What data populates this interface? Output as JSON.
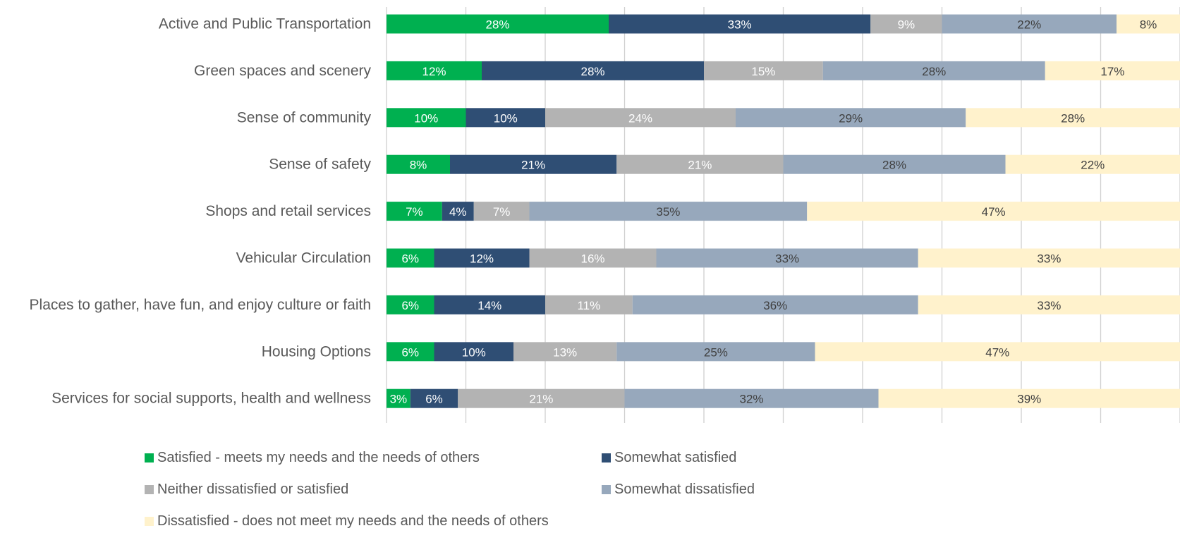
{
  "chart_data": {
    "type": "bar",
    "orientation": "horizontal",
    "stacked": true,
    "categories": [
      "Active and Public Transportation",
      "Green spaces and scenery",
      "Sense of community",
      "Sense of safety",
      "Shops and retail services",
      "Vehicular Circulation",
      "Places to gather, have fun, and enjoy culture or faith",
      "Housing Options",
      "Services for social supports, health and wellness"
    ],
    "series": [
      {
        "name": "Satisfied - meets my needs and the needs of others",
        "color": "#00b050",
        "label_color": "#ffffff",
        "values": [
          28,
          12,
          10,
          8,
          7,
          6,
          6,
          6,
          3
        ]
      },
      {
        "name": "Somewhat satisfied",
        "color": "#2f4e74",
        "label_color": "#ffffff",
        "values": [
          33,
          28,
          10,
          21,
          4,
          12,
          14,
          10,
          6
        ]
      },
      {
        "name": "Neither dissatisfied or satisfied",
        "color": "#b3b3b3",
        "label_color": "#ffffff",
        "values": [
          9,
          15,
          24,
          21,
          7,
          16,
          11,
          13,
          21
        ]
      },
      {
        "name": "Somewhat dissatisfied",
        "color": "#97a8bc",
        "label_color": "#404040",
        "values": [
          22,
          28,
          29,
          28,
          35,
          33,
          36,
          25,
          32
        ]
      },
      {
        "name": "Dissatisfied - does not meet my needs and the needs of others",
        "color": "#fff2cc",
        "label_color": "#404040",
        "values": [
          8,
          17,
          28,
          22,
          47,
          33,
          33,
          47,
          39
        ]
      }
    ],
    "value_suffix": "%",
    "xlim": [
      0,
      100
    ],
    "grid": true,
    "legend_position": "bottom"
  }
}
